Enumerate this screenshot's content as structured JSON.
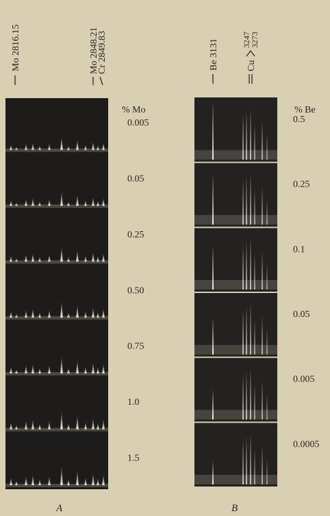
{
  "panel_a": {
    "line_labels": [
      "Mo 2816.15",
      "Mo 2848.21",
      "Cr 2849.83"
    ],
    "header": "% Mo",
    "concentrations": [
      "0.005",
      "0.05",
      "0.25",
      "0.50",
      "0.75",
      "1.0",
      "1.5"
    ],
    "caption": "A"
  },
  "panel_b": {
    "line_labels": [
      "Be 3131",
      "Cu",
      "3247",
      "3273"
    ],
    "header": "% Be",
    "concentrations": [
      "0.5",
      "0.25",
      "0.1",
      "0.05",
      "0.005",
      "0.0005"
    ],
    "caption": "B"
  }
}
